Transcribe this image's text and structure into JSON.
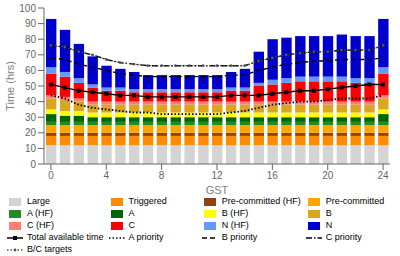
{
  "chart_data": {
    "type": "bar",
    "stacked": true,
    "xlabel": "GST",
    "ylabel": "Time (hrs)",
    "x": [
      0,
      1,
      2,
      3,
      4,
      5,
      6,
      7,
      8,
      9,
      10,
      11,
      12,
      13,
      14,
      15,
      16,
      17,
      18,
      19,
      20,
      21,
      22,
      23,
      24
    ],
    "xlim": [
      -0.5,
      24.5
    ],
    "xticks": [
      0,
      4,
      8,
      12,
      16,
      20,
      24
    ],
    "ylim": [
      0,
      100
    ],
    "yticks": [
      0,
      10,
      20,
      30,
      40,
      50,
      60,
      70,
      80,
      90,
      100
    ],
    "grid": false,
    "legend": "bottom",
    "series": [
      {
        "name": "Large",
        "color": "#d4d4d4",
        "values": [
          12,
          12,
          12,
          12,
          12,
          12,
          12,
          12,
          12,
          12,
          12,
          12,
          12,
          12,
          12,
          12,
          12,
          12,
          12,
          12,
          12,
          12,
          12,
          12,
          12
        ]
      },
      {
        "name": "Triggered",
        "color": "#FF8C00",
        "values": [
          6,
          6,
          6,
          6,
          6,
          6,
          6,
          6,
          6,
          6,
          6,
          6,
          6,
          6,
          6,
          6,
          6,
          6,
          6,
          6,
          6,
          6,
          6,
          6,
          6
        ]
      },
      {
        "name": "Pre-committed (HF)",
        "color": "#8B4513",
        "values": [
          2,
          2,
          2,
          2,
          2,
          2,
          2,
          2,
          2,
          2,
          2,
          2,
          2,
          2,
          2,
          2,
          2,
          2,
          2,
          2,
          2,
          2,
          2,
          2,
          2
        ]
      },
      {
        "name": "Pre-committed",
        "color": "#FFA500",
        "values": [
          5,
          5,
          5,
          5,
          5,
          5,
          5,
          5,
          5,
          5,
          5,
          5,
          5,
          5,
          5,
          5,
          5,
          5,
          5,
          5,
          5,
          5,
          5,
          5,
          5
        ]
      },
      {
        "name": "A (HF)",
        "color": "#228B22",
        "values": [
          2,
          2,
          2,
          2,
          2,
          2,
          2,
          2,
          2,
          2,
          2,
          2,
          2,
          2,
          2,
          2,
          2,
          2,
          2,
          2,
          2,
          2,
          2,
          2,
          2
        ]
      },
      {
        "name": "A",
        "color": "#006400",
        "values": [
          5,
          4,
          4,
          3,
          3,
          3,
          3,
          3,
          3,
          3,
          3,
          3,
          3,
          3,
          3,
          3,
          3,
          3,
          3,
          3,
          3,
          3,
          3,
          3,
          5
        ]
      },
      {
        "name": "B (HF)",
        "color": "#FFFF00",
        "values": [
          3,
          3,
          3,
          3,
          3,
          3,
          3,
          3,
          3,
          3,
          3,
          3,
          3,
          3,
          3,
          3,
          3,
          3,
          3,
          3,
          3,
          3,
          3,
          3,
          3
        ]
      },
      {
        "name": "B",
        "color": "#DAA520",
        "values": [
          7,
          7,
          6,
          5,
          5,
          5,
          5,
          5,
          5,
          5,
          5,
          5,
          5,
          5,
          5,
          5,
          5,
          5,
          5,
          5,
          5,
          5,
          5,
          5,
          7
        ]
      },
      {
        "name": "C (HF)",
        "color": "#FA8072",
        "values": [
          2,
          2,
          2,
          2,
          2,
          2,
          2,
          2,
          2,
          2,
          2,
          2,
          2,
          2,
          2,
          2,
          2,
          2,
          2,
          2,
          2,
          2,
          2,
          2,
          2
        ]
      },
      {
        "name": "C",
        "color": "#FF0000",
        "values": [
          14,
          13,
          10,
          9,
          7,
          7,
          6,
          6,
          6,
          6,
          6,
          6,
          6,
          7,
          7,
          10,
          11,
          12,
          13,
          13,
          13,
          13,
          12,
          12,
          14
        ]
      },
      {
        "name": "N (HF)",
        "color": "#6699FF",
        "values": [
          4,
          3,
          3,
          2,
          2,
          2,
          2,
          2,
          2,
          2,
          2,
          2,
          2,
          2,
          2,
          2,
          3,
          3,
          3,
          3,
          3,
          3,
          3,
          3,
          4
        ]
      },
      {
        "name": "N",
        "color": "#0000CC",
        "values": [
          31,
          27,
          22,
          18,
          14,
          12,
          11,
          9,
          9,
          9,
          9,
          9,
          9,
          10,
          12,
          20,
          26,
          26,
          26,
          26,
          26,
          27,
          27,
          27,
          31
        ]
      },
      {
        "name": "Total available time",
        "type": "line",
        "color": "#000000",
        "line_style": "solid",
        "marker": "square",
        "values": [
          51,
          49,
          47,
          46,
          45,
          44,
          44,
          43,
          43,
          43,
          43,
          43,
          43,
          44,
          44,
          44,
          45,
          46,
          47,
          47,
          48,
          49,
          50,
          51,
          51
        ]
      },
      {
        "name": "A priority",
        "type": "line",
        "color": "#000000",
        "line_style": "dotted",
        "values": [
          44,
          42,
          38,
          36,
          35,
          34,
          33,
          33,
          32,
          32,
          32,
          32,
          32,
          33,
          34,
          36,
          38,
          39,
          40,
          40,
          41,
          42,
          42,
          42,
          44
        ]
      },
      {
        "name": "B priority",
        "type": "line",
        "color": "#000000",
        "line_style": "dashed",
        "values": [
          68,
          67,
          64,
          62,
          60,
          58,
          57,
          56,
          56,
          56,
          56,
          56,
          56,
          57,
          57,
          60,
          62,
          64,
          65,
          66,
          66,
          67,
          67,
          67,
          68
        ]
      },
      {
        "name": "C priority",
        "type": "line",
        "color": "#000000",
        "line_style": "dashdot",
        "values": [
          76,
          75,
          72,
          70,
          67,
          65,
          64,
          63,
          63,
          63,
          63,
          63,
          63,
          63,
          63,
          66,
          68,
          70,
          71,
          72,
          72,
          73,
          73,
          73,
          76
        ]
      },
      {
        "name": "B/C targets",
        "type": "line",
        "color": "#555555",
        "line_style": "dotted",
        "marker": "dot",
        "values": [
          76,
          75,
          72,
          70,
          67,
          65,
          64,
          63,
          63,
          63,
          63,
          63,
          63,
          63,
          63,
          66,
          68,
          70,
          71,
          72,
          72,
          73,
          73,
          73,
          76
        ]
      }
    ]
  }
}
